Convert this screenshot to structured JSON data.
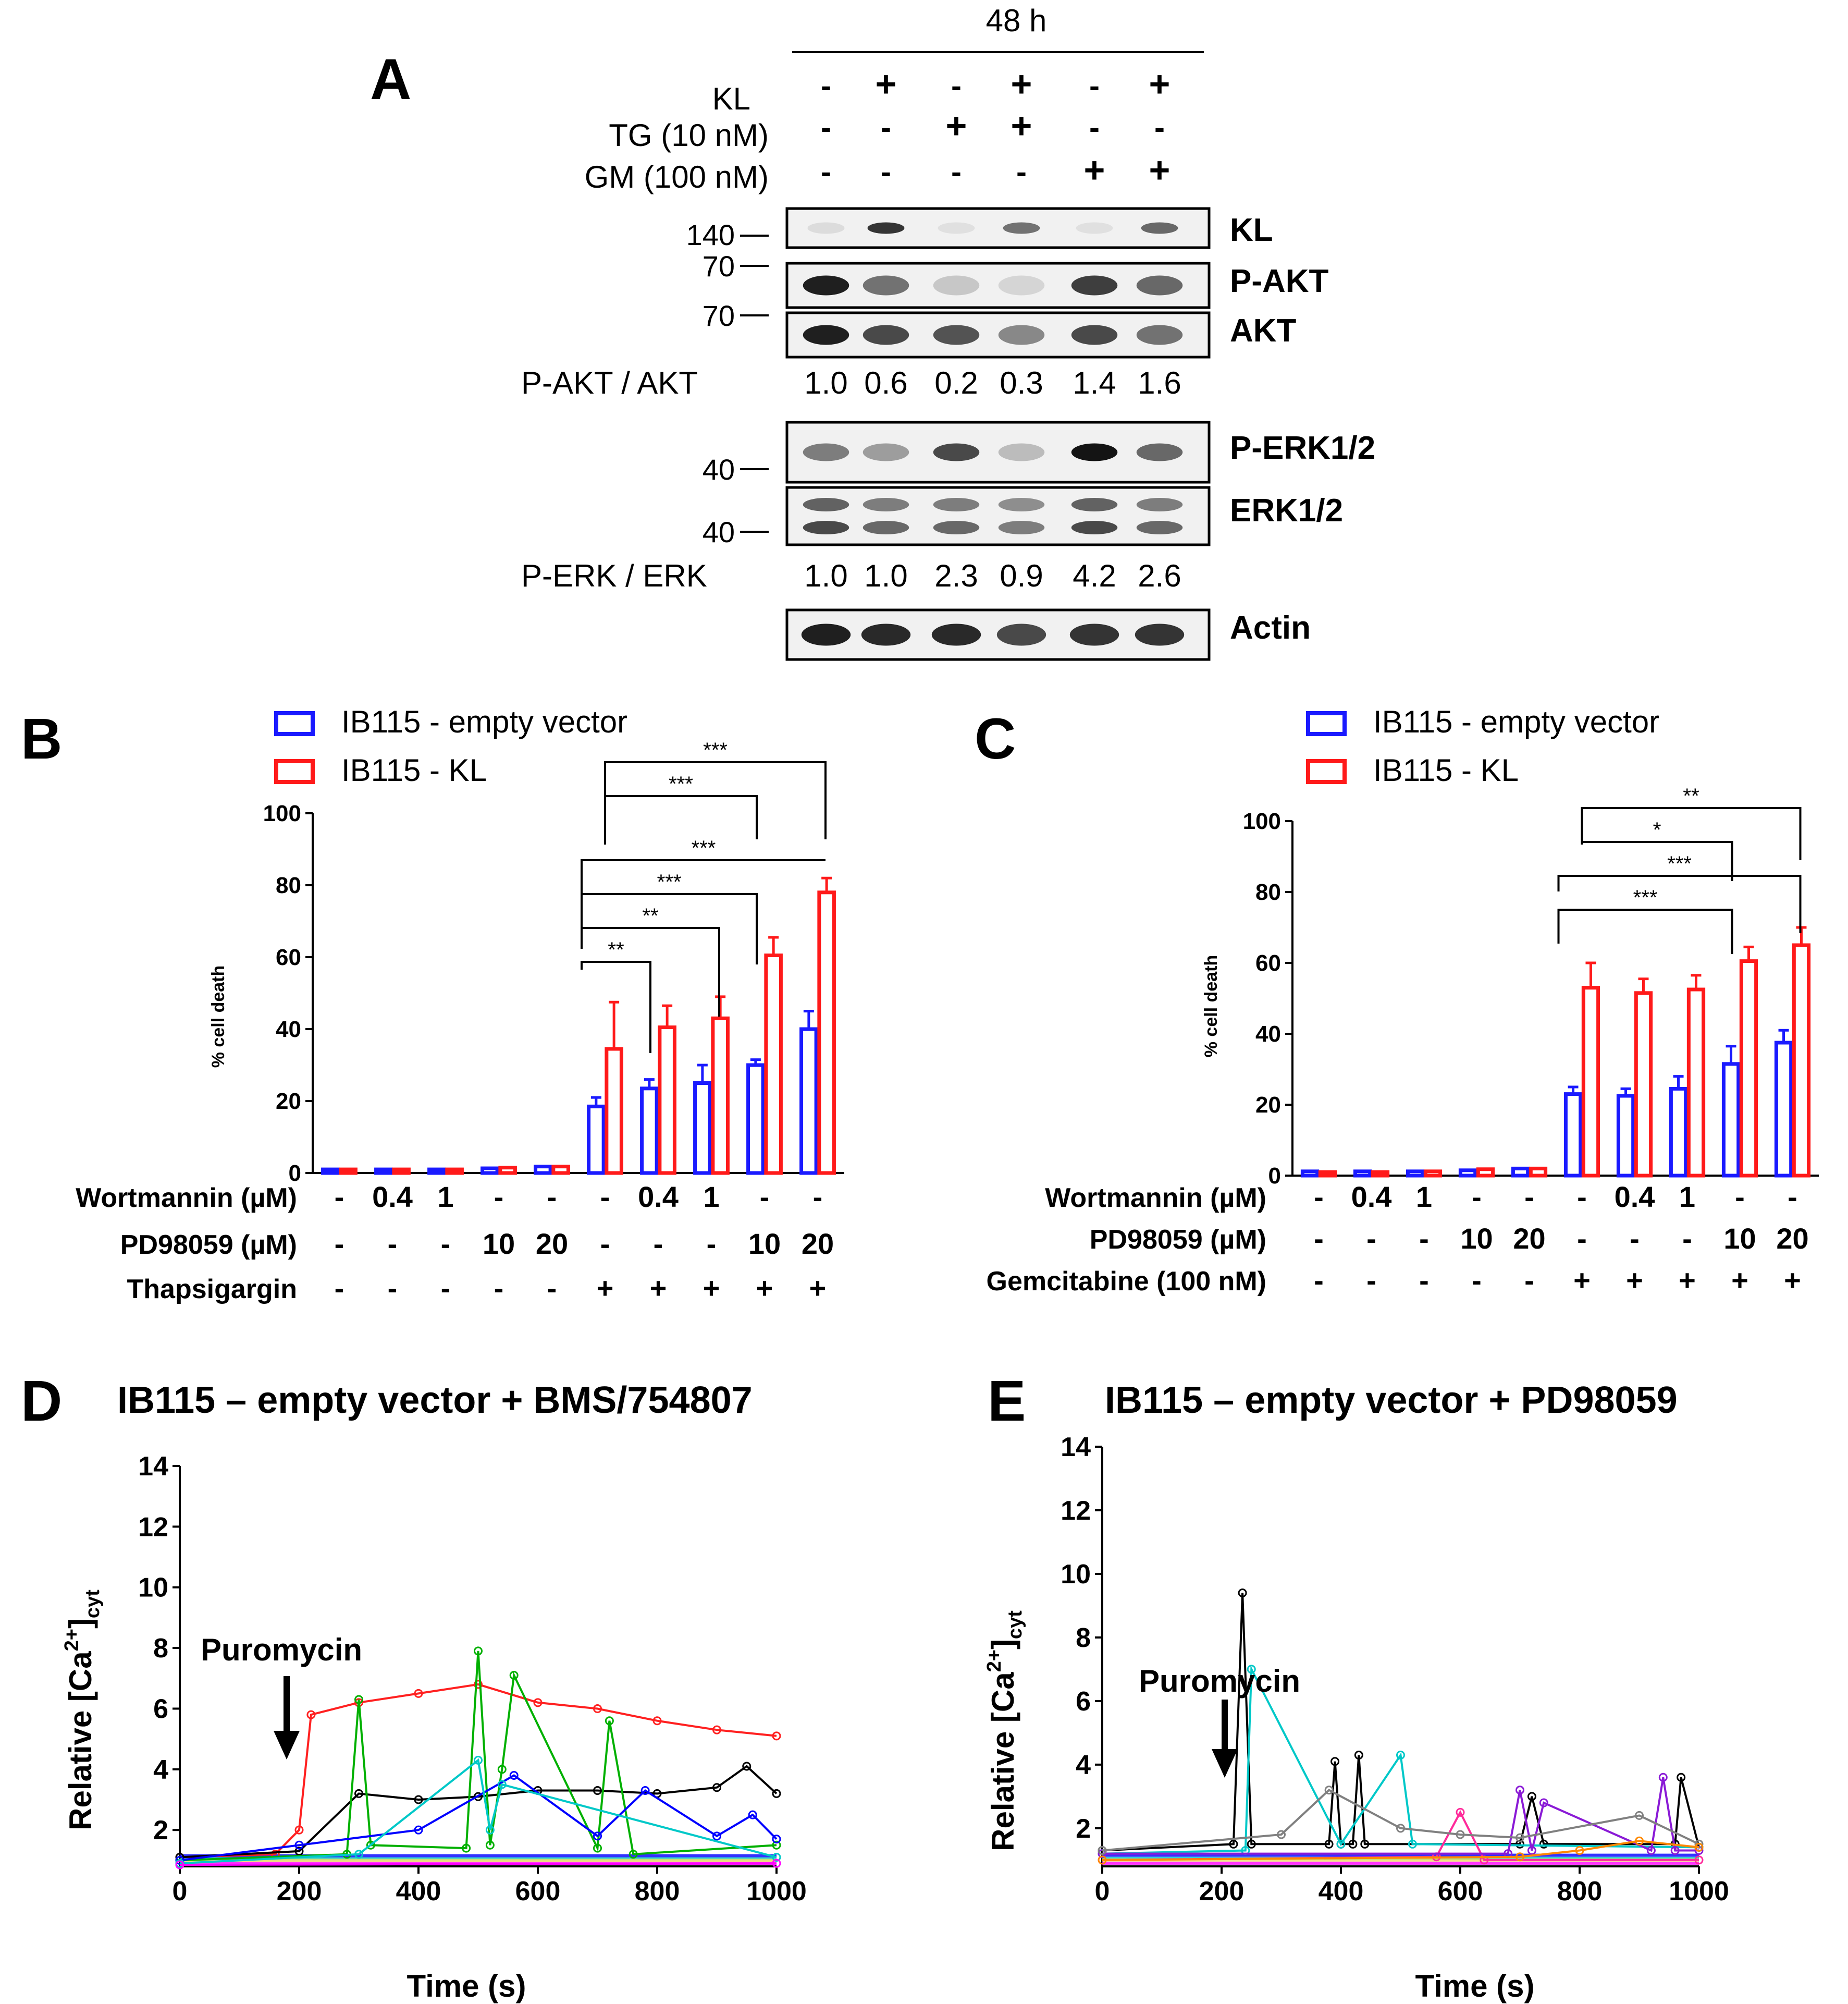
{
  "panel_a": {
    "letter": "A",
    "header": "48 h",
    "row_labels": [
      "KL",
      "TG (10 nM)",
      "GM (100 nM)"
    ],
    "rows": [
      [
        "-",
        "+",
        "-",
        "+",
        "-",
        "+"
      ],
      [
        "-",
        "-",
        "+",
        "+",
        "-",
        "-"
      ],
      [
        "-",
        "-",
        "-",
        "-",
        "+",
        "+"
      ]
    ],
    "bands": [
      "KL",
      "P-AKT",
      "AKT",
      "P-ERK1/2",
      "ERK1/2",
      "Actin"
    ],
    "markers": [
      "140",
      "70",
      "70",
      "40",
      "40"
    ],
    "ratio1_label": "P-AKT / AKT",
    "ratio1_values": [
      "1.0",
      "0.6",
      "0.2",
      "0.3",
      "1.4",
      "1.6"
    ],
    "ratio2_label": "P-ERK / ERK",
    "ratio2_values": [
      "1.0",
      "1.0",
      "2.3",
      "0.9",
      "4.2",
      "2.6"
    ]
  },
  "panel_b": {
    "letter": "B",
    "legend": [
      "IB115 - empty vector",
      "IB115 - KL"
    ],
    "ylabel": "% cell death",
    "yticks": [
      "0",
      "20",
      "40",
      "60",
      "80",
      "100"
    ],
    "stars": [
      "***",
      "***",
      "***",
      "***",
      "**",
      "**"
    ],
    "cond_labels": [
      "Wortmannin (µM)",
      "PD98059 (µM)",
      "Thapsigargin"
    ],
    "cond_rows": [
      [
        "-",
        "0.4",
        "1",
        "-",
        "-",
        "-",
        "0.4",
        "1",
        "-",
        "-"
      ],
      [
        "-",
        "-",
        "-",
        "10",
        "20",
        "-",
        "-",
        "-",
        "10",
        "20"
      ],
      [
        "-",
        "-",
        "-",
        "-",
        "-",
        "+",
        "+",
        "+",
        "+",
        "+"
      ]
    ]
  },
  "panel_c": {
    "letter": "C",
    "legend": [
      "IB115 - empty vector",
      "IB115 - KL"
    ],
    "ylabel": "% cell death",
    "yticks": [
      "0",
      "20",
      "40",
      "60",
      "80",
      "100"
    ],
    "stars": [
      "**",
      "*",
      "***",
      "***"
    ],
    "cond_labels": [
      "Wortmannin (µM)",
      "PD98059 (µM)",
      "Gemcitabine (100 nM)"
    ],
    "cond_rows": [
      [
        "-",
        "0.4",
        "1",
        "-",
        "-",
        "-",
        "0.4",
        "1",
        "-",
        "-"
      ],
      [
        "-",
        "-",
        "-",
        "10",
        "20",
        "-",
        "-",
        "-",
        "10",
        "20"
      ],
      [
        "-",
        "-",
        "-",
        "-",
        "-",
        "+",
        "+",
        "+",
        "+",
        "+"
      ]
    ]
  },
  "panel_d": {
    "letter": "D",
    "title": "IB115 – empty vector + BMS/754807",
    "annotation": "Puromycin",
    "xticks": [
      "0",
      "200",
      "400",
      "600",
      "800",
      "1000"
    ],
    "yticks": [
      "2",
      "4",
      "6",
      "8",
      "10",
      "12",
      "14"
    ],
    "xlabel": "Time (s)",
    "ylabel_main": "Relative [Ca",
    "ylabel_sup": "2+",
    "ylabel_end": "]",
    "ylabel_sub": "cyt"
  },
  "panel_e": {
    "letter": "E",
    "title": "IB115 – empty vector + PD98059",
    "annotation": "Puromycin",
    "xticks": [
      "0",
      "200",
      "400",
      "600",
      "800",
      "1000"
    ],
    "yticks": [
      "2",
      "4",
      "6",
      "8",
      "10",
      "12",
      "14"
    ],
    "xlabel": "Time (s)",
    "ylabel_main": "Relative [Ca",
    "ylabel_sup": "2+",
    "ylabel_end": "]",
    "ylabel_sub": "cyt"
  },
  "colors": {
    "empty_vector": "#1a1aff",
    "kl": "#ff1a1a",
    "traces": [
      "#ff2020",
      "#00b000",
      "#0000ff",
      "#00c8c8",
      "#ff00ff",
      "#000000",
      "#808080",
      "#ff8800",
      "#8800cc",
      "#f0e060"
    ]
  },
  "chart_data": [
    {
      "panel": "B",
      "type": "bar",
      "ylabel": "% cell death",
      "ylim": [
        0,
        100
      ],
      "categories": [
        "1",
        "2",
        "3",
        "4",
        "5",
        "6",
        "7",
        "8",
        "9",
        "10"
      ],
      "series": [
        {
          "name": "IB115 - empty vector",
          "values": [
            1,
            1,
            1,
            1.3,
            1.8,
            18.5,
            23.5,
            25,
            30,
            40
          ],
          "errors": [
            0.3,
            0.3,
            0.3,
            0.3,
            0.3,
            2.5,
            2.5,
            5,
            1.5,
            5
          ]
        },
        {
          "name": "IB115 - KL",
          "values": [
            1,
            1,
            1,
            1.5,
            1.8,
            34.5,
            40.5,
            43,
            60.5,
            78
          ],
          "errors": [
            0.3,
            0.3,
            0.3,
            0.3,
            0.3,
            13,
            6,
            6,
            5,
            4
          ]
        }
      ],
      "comparisons": [
        {
          "from": 6,
          "to": 10,
          "stars": "***"
        },
        {
          "from": 6,
          "to": 9,
          "stars": "***"
        },
        {
          "from": 6,
          "to": 10,
          "stars": "***"
        },
        {
          "from": 6,
          "to": 9,
          "stars": "***"
        },
        {
          "from": 6,
          "to": 8,
          "stars": "**"
        },
        {
          "from": 6,
          "to": 7,
          "stars": "**"
        }
      ]
    },
    {
      "panel": "C",
      "type": "bar",
      "ylabel": "% cell death",
      "ylim": [
        0,
        100
      ],
      "categories": [
        "1",
        "2",
        "3",
        "4",
        "5",
        "6",
        "7",
        "8",
        "9",
        "10"
      ],
      "series": [
        {
          "name": "IB115 - empty vector",
          "values": [
            1.2,
            1.2,
            1.2,
            1.5,
            2,
            23,
            22.5,
            24.5,
            31.5,
            37.5
          ],
          "errors": [
            0.3,
            0.3,
            0.3,
            0.3,
            0.3,
            2,
            2,
            3.5,
            5,
            3.5
          ]
        },
        {
          "name": "IB115 - KL",
          "values": [
            1,
            1,
            1.2,
            1.8,
            2,
            53,
            51.5,
            52.5,
            60.5,
            65
          ],
          "errors": [
            0.3,
            0.3,
            0.3,
            0.3,
            0.3,
            7,
            4,
            4,
            4,
            5
          ]
        }
      ],
      "comparisons": [
        {
          "from": 6,
          "to": 10,
          "stars": "**"
        },
        {
          "from": 6,
          "to": 9,
          "stars": "*"
        },
        {
          "from": 6,
          "to": 10,
          "stars": "***"
        },
        {
          "from": 6,
          "to": 9,
          "stars": "***"
        }
      ]
    },
    {
      "panel": "D",
      "type": "line",
      "title": "IB115 – empty vector + BMS/754807",
      "xlabel": "Time (s)",
      "ylabel": "Relative [Ca2+]cyt",
      "xlim": [
        0,
        1000
      ],
      "ylim": [
        0.8,
        14
      ],
      "series": [
        {
          "name": "red",
          "x": [
            0,
            160,
            200,
            220,
            300,
            400,
            500,
            600,
            700,
            800,
            900,
            1000
          ],
          "y": [
            1.1,
            1.2,
            2,
            5.8,
            6.2,
            6.5,
            6.8,
            6.2,
            6,
            5.6,
            5.3,
            5.1
          ]
        },
        {
          "name": "black",
          "x": [
            0,
            200,
            300,
            400,
            500,
            600,
            700,
            800,
            900,
            950,
            1000
          ],
          "y": [
            1.1,
            1.3,
            3.2,
            3,
            3.1,
            3.3,
            3.3,
            3.2,
            3.4,
            4.1,
            3.2
          ]
        },
        {
          "name": "green",
          "x": [
            0,
            280,
            300,
            320,
            480,
            500,
            520,
            540,
            560,
            700,
            720,
            760,
            1000
          ],
          "y": [
            1,
            1.2,
            6.3,
            1.5,
            1.4,
            7.9,
            1.5,
            4,
            7.1,
            1.4,
            5.6,
            1.2,
            1.5
          ]
        },
        {
          "name": "blue",
          "x": [
            0,
            200,
            400,
            560,
            700,
            780,
            900,
            960,
            1000
          ],
          "y": [
            1,
            1.5,
            2,
            3.8,
            1.8,
            3.3,
            1.8,
            2.5,
            1.7
          ]
        },
        {
          "name": "cyan",
          "x": [
            0,
            300,
            500,
            520,
            540,
            1000
          ],
          "y": [
            0.9,
            1.2,
            4.3,
            2,
            3.5,
            1.1
          ]
        },
        {
          "name": "magenta",
          "x": [
            0,
            1000
          ],
          "y": [
            0.85,
            0.9
          ]
        }
      ]
    },
    {
      "panel": "E",
      "type": "line",
      "title": "IB115 – empty vector + PD98059",
      "xlabel": "Time (s)",
      "ylabel": "Relative [Ca2+]cyt",
      "xlim": [
        0,
        1000
      ],
      "ylim": [
        0.8,
        14
      ],
      "series": [
        {
          "name": "black",
          "x": [
            0,
            220,
            235,
            250,
            380,
            390,
            400,
            420,
            430,
            440,
            700,
            720,
            740,
            960,
            970,
            1000
          ],
          "y": [
            1.3,
            1.5,
            9.4,
            1.5,
            1.5,
            4.1,
            1.5,
            1.5,
            4.3,
            1.5,
            1.5,
            3,
            1.5,
            1.5,
            3.6,
            1.4
          ]
        },
        {
          "name": "cyan",
          "x": [
            0,
            240,
            250,
            400,
            500,
            520,
            1000
          ],
          "y": [
            1.2,
            1.3,
            7,
            1.5,
            4.3,
            1.5,
            1.4
          ]
        },
        {
          "name": "pink",
          "x": [
            0,
            560,
            600,
            640,
            1000
          ],
          "y": [
            1,
            1.1,
            2.5,
            1,
            1
          ]
        },
        {
          "name": "purple",
          "x": [
            0,
            680,
            700,
            720,
            740,
            920,
            940,
            960,
            1000
          ],
          "y": [
            1.2,
            1.2,
            3.2,
            1.3,
            2.8,
            1.3,
            3.6,
            1.3,
            1.3
          ]
        },
        {
          "name": "gray",
          "x": [
            0,
            300,
            380,
            500,
            600,
            700,
            900,
            1000
          ],
          "y": [
            1.3,
            1.8,
            3.2,
            2,
            1.8,
            1.7,
            2.4,
            1.5
          ]
        },
        {
          "name": "orange",
          "x": [
            0,
            700,
            800,
            900,
            1000
          ],
          "y": [
            1,
            1.1,
            1.3,
            1.6,
            1.4
          ]
        }
      ]
    }
  ]
}
